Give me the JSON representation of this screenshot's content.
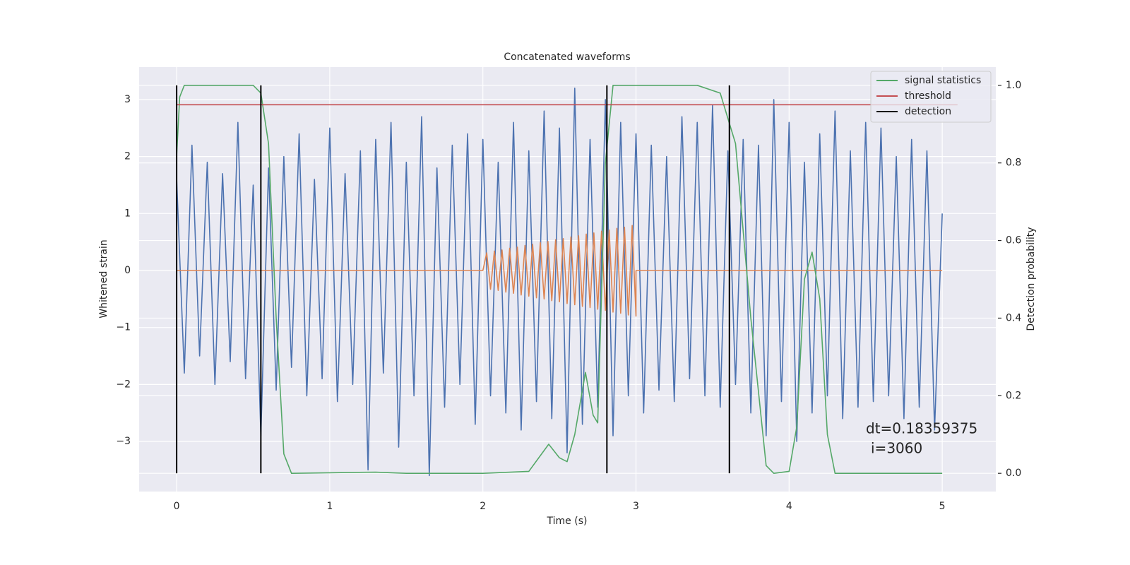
{
  "chart_data": {
    "type": "line",
    "title": "Concatenated waveforms",
    "xlabel": "Time (s)",
    "ylabel": "Whitened strain",
    "y2label": "Detection probability",
    "xlim": [
      -0.245,
      5.35
    ],
    "ylim": [
      -3.88,
      3.57
    ],
    "y2lim": [
      -0.047,
      1.047
    ],
    "xticks": [
      0,
      1,
      2,
      3,
      4,
      5
    ],
    "yticks": [
      {
        "value": -3,
        "label": "−3"
      },
      {
        "value": -2,
        "label": "−2"
      },
      {
        "value": -1,
        "label": "−1"
      },
      0,
      1,
      2,
      3
    ],
    "y2ticks": [
      {
        "value": 0,
        "label": "0.0"
      },
      {
        "value": 0.2,
        "label": "0.2"
      },
      {
        "value": 0.4,
        "label": "0.4"
      },
      {
        "value": 0.6,
        "label": "0.6"
      },
      {
        "value": 0.8,
        "label": "0.8"
      },
      {
        "value": 1,
        "label": "1.0"
      }
    ],
    "grid": true,
    "background": "#eaeaf2",
    "legend": "upper right",
    "annotation": [
      "dt=0.18359375",
      "i=3060"
    ],
    "series": [
      {
        "color": "#4c72b0",
        "x": [
          0,
          0.05,
          0.1,
          0.15,
          0.2,
          0.25,
          0.3,
          0.35,
          0.4,
          0.45,
          0.5,
          0.55,
          0.6,
          0.65,
          0.7,
          0.75,
          0.8,
          0.85,
          0.9,
          0.95,
          1,
          1.05,
          1.1,
          1.15,
          1.2,
          1.25,
          1.3,
          1.35,
          1.4,
          1.45,
          1.5,
          1.55,
          1.6,
          1.65,
          1.7,
          1.75,
          1.8,
          1.85,
          1.9,
          1.95,
          2,
          2.05,
          2.1,
          2.15,
          2.2,
          2.25,
          2.3,
          2.35,
          2.4,
          2.45,
          2.5,
          2.55,
          2.6,
          2.65,
          2.7,
          2.75,
          2.8,
          2.85,
          2.9,
          2.95,
          3,
          3.05,
          3.1,
          3.15,
          3.2,
          3.25,
          3.3,
          3.35,
          3.4,
          3.45,
          3.5,
          3.55,
          3.6,
          3.65,
          3.7,
          3.75,
          3.8,
          3.85,
          3.9,
          3.95,
          4,
          4.05,
          4.1,
          4.15,
          4.2,
          4.25,
          4.3,
          4.35,
          4.4,
          4.45,
          4.5,
          4.55,
          4.6,
          4.65,
          4.7,
          4.75,
          4.8,
          4.85,
          4.9,
          4.95,
          5
        ],
        "values": [
          1.6,
          -1.8,
          2.2,
          -1.5,
          1.9,
          -2.0,
          1.7,
          -1.6,
          2.6,
          -1.9,
          1.5,
          -2.9,
          1.8,
          -2.1,
          2.0,
          -1.7,
          2.4,
          -2.2,
          1.6,
          -1.9,
          2.5,
          -2.3,
          1.7,
          -2.0,
          2.1,
          -3.5,
          2.3,
          -1.8,
          2.6,
          -3.1,
          1.9,
          -2.2,
          2.7,
          -3.6,
          1.8,
          -2.4,
          2.2,
          -2.0,
          2.4,
          -2.7,
          2.3,
          -2.2,
          1.9,
          -2.5,
          2.6,
          -2.8,
          2.1,
          -2.3,
          2.8,
          -2.6,
          2.5,
          -3.2,
          3.2,
          -2.7,
          2.3,
          -2.4,
          3.0,
          -2.9,
          2.6,
          -2.2,
          2.4,
          -2.5,
          2.2,
          -2.1,
          2.0,
          -2.3,
          2.7,
          -1.9,
          2.6,
          -2.2,
          2.9,
          -2.4,
          2.1,
          -2.0,
          2.3,
          -2.5,
          2.2,
          -2.9,
          3.0,
          -2.3,
          2.6,
          -3.0,
          1.9,
          -2.5,
          2.4,
          -2.2,
          2.8,
          -2.6,
          2.1,
          -2.4,
          2.6,
          -2.3,
          2.5,
          -2.2,
          2.0,
          -2.6,
          2.3,
          -2.4,
          2.1,
          -2.8,
          1.0
        ]
      },
      {
        "color": "#dd8452",
        "x": [
          0,
          2,
          2.025,
          2.05,
          2.075,
          2.1,
          2.125,
          2.15,
          2.175,
          2.2,
          2.225,
          2.25,
          2.275,
          2.3,
          2.325,
          2.35,
          2.375,
          2.4,
          2.425,
          2.45,
          2.475,
          2.5,
          2.525,
          2.55,
          2.575,
          2.6,
          2.625,
          2.65,
          2.675,
          2.7,
          2.725,
          2.75,
          2.775,
          2.8,
          2.825,
          2.85,
          2.875,
          2.9,
          2.925,
          2.95,
          2.975,
          3,
          3,
          5
        ],
        "values": [
          0,
          0,
          0.31,
          -0.33,
          0.34,
          -0.35,
          0.36,
          -0.38,
          0.39,
          -0.4,
          0.41,
          -0.43,
          0.44,
          -0.45,
          0.46,
          -0.48,
          0.49,
          -0.5,
          0.51,
          -0.53,
          0.54,
          -0.55,
          0.56,
          -0.58,
          0.59,
          -0.6,
          0.61,
          -0.63,
          0.64,
          -0.65,
          0.66,
          -0.68,
          0.69,
          -0.7,
          0.71,
          -0.73,
          0.74,
          -0.75,
          0.76,
          -0.78,
          0.79,
          -0.8,
          0,
          0
        ]
      },
      {
        "name": "signal statistics",
        "color": "#55a868",
        "axis": "y2",
        "x": [
          0,
          0.02,
          0.05,
          0.5,
          0.55,
          0.6,
          0.65,
          0.7,
          0.75,
          1.3,
          1.5,
          2,
          2.3,
          2.43,
          2.5,
          2.55,
          2.6,
          2.67,
          2.72,
          2.75,
          2.8,
          2.85,
          3.4,
          3.55,
          3.65,
          3.75,
          3.85,
          3.9,
          4,
          4.05,
          4.1,
          4.15,
          4.2,
          4.25,
          4.3,
          5
        ],
        "values": [
          0.82,
          0.97,
          1,
          1,
          0.98,
          0.85,
          0.4,
          0.05,
          0,
          0.003,
          0,
          0,
          0.005,
          0.075,
          0.04,
          0.03,
          0.1,
          0.26,
          0.15,
          0.13,
          0.8,
          1,
          1,
          0.98,
          0.85,
          0.4,
          0.02,
          0,
          0.005,
          0.12,
          0.5,
          0.57,
          0.45,
          0.1,
          0,
          0
        ]
      },
      {
        "name": "threshold",
        "color": "#c44e52",
        "axis": "y2",
        "x": [
          0,
          5.1
        ],
        "values": [
          0.95,
          0.95
        ]
      },
      {
        "name": "detection",
        "color": "#000000",
        "axis": "y2",
        "kind": "vline",
        "x": [
          0,
          0.55,
          2.81,
          3.61
        ],
        "span": [
          0,
          1
        ]
      }
    ]
  }
}
